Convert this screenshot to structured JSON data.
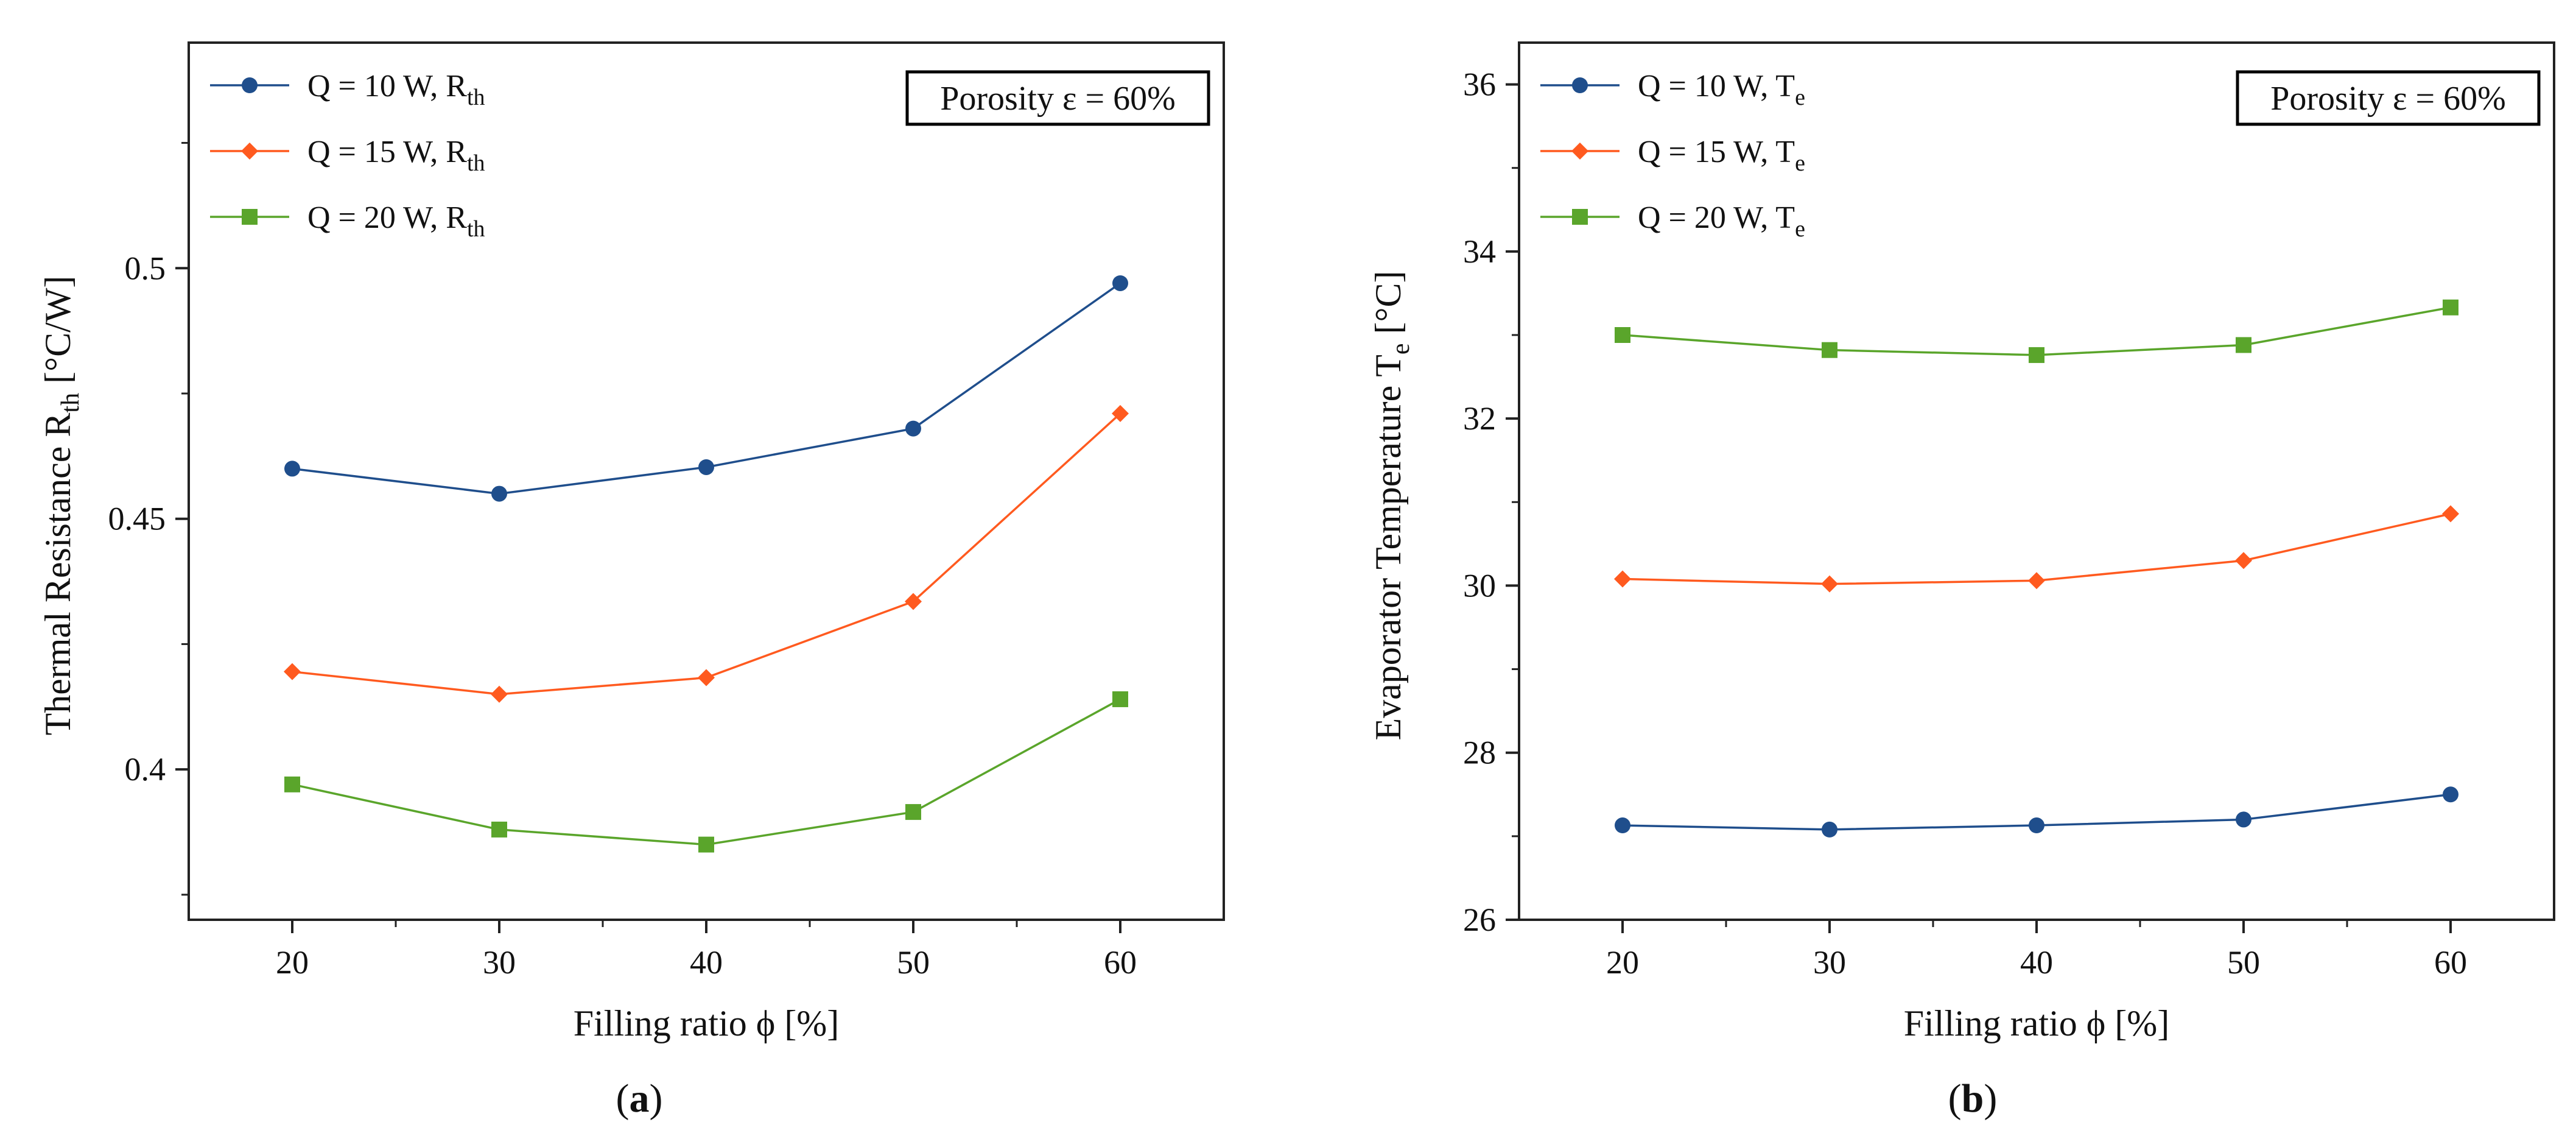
{
  "colors": {
    "series_10W": "#1f4e8c",
    "series_15W": "#ff5a1f",
    "series_20W": "#5aa52b",
    "axis": "#222222"
  },
  "chart_data": [
    {
      "panel_label": "(a)",
      "panel_letter": "a",
      "type": "line",
      "annotation": "Porosity ε = 60%",
      "xlabel": "Filling ratio ϕ [%]",
      "ylabel_main": "Thermal Resistance R",
      "ylabel_sub": "th",
      "ylabel_unit": " [°C/W]",
      "x": [
        20,
        30,
        40,
        50,
        60
      ],
      "xlim": [
        15,
        65
      ],
      "ylim": [
        0.37,
        0.545
      ],
      "xticks": [
        20,
        30,
        40,
        50,
        60
      ],
      "xminor": [
        25,
        35,
        45,
        55
      ],
      "yticks": [
        0.4,
        0.45,
        0.5
      ],
      "ytick_labels": [
        "0.4",
        "0.45",
        "0.5"
      ],
      "yminor": [
        0.375,
        0.425,
        0.475,
        0.525
      ],
      "series": [
        {
          "name": "Q = 10 W, R",
          "sub": "th",
          "marker": "circle",
          "color": "#1f4e8c",
          "values": [
            0.46,
            0.455,
            0.4603,
            0.468,
            0.497
          ]
        },
        {
          "name": "Q = 15 W, R",
          "sub": "th",
          "marker": "diamond",
          "color": "#ff5a1f",
          "values": [
            0.4195,
            0.415,
            0.4183,
            0.4335,
            0.471
          ]
        },
        {
          "name": "Q = 20 W, R",
          "sub": "th",
          "marker": "square",
          "color": "#5aa52b",
          "values": [
            0.397,
            0.388,
            0.385,
            0.3915,
            0.414
          ]
        }
      ]
    },
    {
      "panel_label": "(b)",
      "panel_letter": "b",
      "type": "line",
      "annotation": "Porosity ε = 60%",
      "xlabel": "Filling ratio ϕ [%]",
      "ylabel_main": "Evaporator Temperature T",
      "ylabel_sub": "e",
      "ylabel_unit": " [°C]",
      "x": [
        20,
        30,
        40,
        50,
        60
      ],
      "xlim": [
        15,
        65
      ],
      "ylim": [
        26,
        36.5
      ],
      "xticks": [
        20,
        30,
        40,
        50,
        60
      ],
      "xminor": [
        25,
        35,
        45,
        55
      ],
      "yticks": [
        26,
        28,
        30,
        32,
        34,
        36
      ],
      "ytick_labels": [
        "26",
        "28",
        "30",
        "32",
        "34",
        "36"
      ],
      "yminor": [
        27,
        29,
        31,
        33,
        35
      ],
      "series": [
        {
          "name": "Q = 10 W, T",
          "sub": "e",
          "marker": "circle",
          "color": "#1f4e8c",
          "values": [
            27.13,
            27.08,
            27.13,
            27.2,
            27.5
          ]
        },
        {
          "name": "Q = 15 W, T",
          "sub": "e",
          "marker": "diamond",
          "color": "#ff5a1f",
          "values": [
            30.08,
            30.02,
            30.06,
            30.3,
            30.86
          ]
        },
        {
          "name": "Q = 20 W, T",
          "sub": "e",
          "marker": "square",
          "color": "#5aa52b",
          "values": [
            33.0,
            32.82,
            32.76,
            32.88,
            33.33
          ]
        }
      ]
    }
  ]
}
